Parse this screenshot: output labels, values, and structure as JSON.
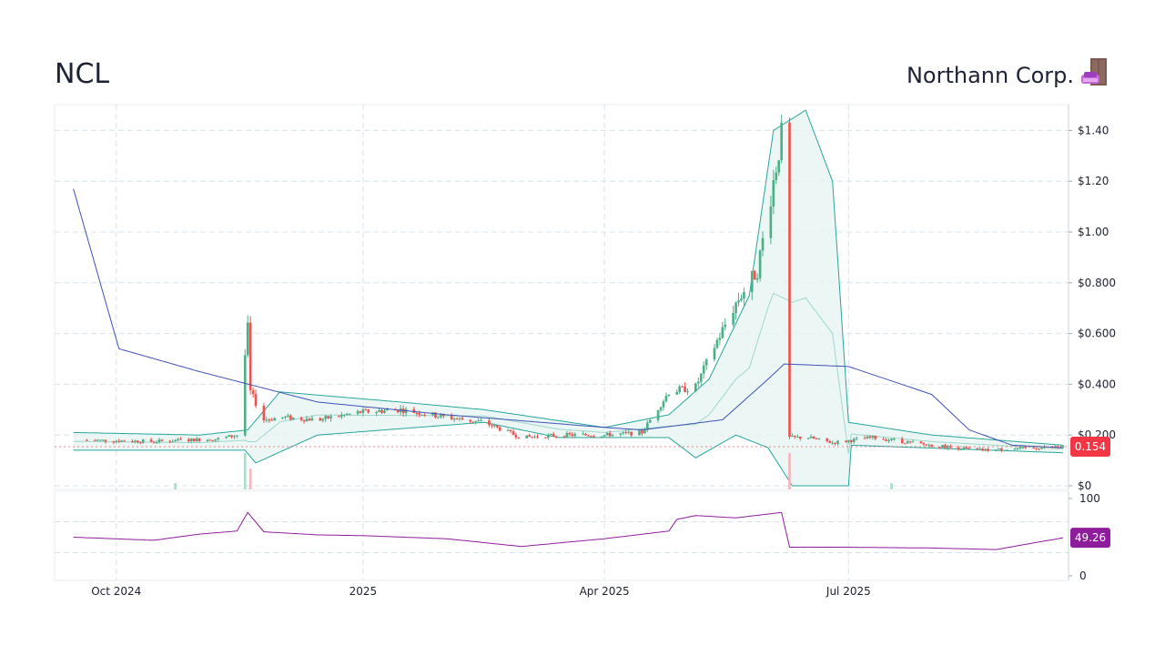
{
  "header": {
    "ticker": "NCL",
    "company": "Northann Corp."
  },
  "logo_icon": "sofa-and-door-icon",
  "colors": {
    "up": "#26a69a",
    "candle_up": "#4caf88",
    "down": "#ef5350",
    "bollinger": "#26a69a",
    "bollinger_fill": "#e6f4f1",
    "ma_long": "#3f51b5",
    "rsi": "#8e1d9c",
    "grid": "#d7e3ea",
    "price_badge": "#f23645",
    "rsi_badge": "#8e1d9c"
  },
  "chart_data": [
    {
      "type": "candlestick",
      "title": "NCL",
      "x_ticks": [
        "Oct 2024",
        "2025",
        "Apr 2025",
        "Jul 2025"
      ],
      "y_ticks": [
        "$0",
        "$0.200",
        "$0.400",
        "$0.600",
        "$0.800",
        "$1.00",
        "$1.20",
        "$1.40"
      ],
      "ylim": [
        0,
        1.5
      ],
      "grid": true,
      "scale": "linear",
      "last_price": "0.154",
      "series": [
        {
          "kind": "close",
          "points": [
            [
              "2024-09-20",
              0.18
            ],
            [
              "2024-10-15",
              0.175
            ],
            [
              "2024-11-08",
              0.185
            ],
            [
              "2024-11-15",
              0.2
            ],
            [
              "2024-11-19",
              0.62
            ],
            [
              "2024-11-20",
              0.37
            ],
            [
              "2024-11-25",
              0.26
            ],
            [
              "2024-12-02",
              0.27
            ],
            [
              "2024-12-15",
              0.26
            ],
            [
              "2024-12-31",
              0.29
            ],
            [
              "2025-01-15",
              0.3
            ],
            [
              "2025-02-01",
              0.27
            ],
            [
              "2025-02-15",
              0.25
            ],
            [
              "2025-03-01",
              0.19
            ],
            [
              "2025-03-15",
              0.2
            ],
            [
              "2025-04-01",
              0.2
            ],
            [
              "2025-04-15",
              0.21
            ],
            [
              "2025-04-25",
              0.37
            ],
            [
              "2025-05-05",
              0.39
            ],
            [
              "2025-05-12",
              0.55
            ],
            [
              "2025-05-20",
              0.72
            ],
            [
              "2025-05-28",
              0.85
            ],
            [
              "2025-06-03",
              1.2
            ],
            [
              "2025-06-06",
              1.38
            ],
            [
              "2025-06-09",
              0.19
            ],
            [
              "2025-06-16",
              0.19
            ],
            [
              "2025-06-25",
              0.17
            ],
            [
              "2025-07-10",
              0.19
            ],
            [
              "2025-07-31",
              0.16
            ],
            [
              "2025-08-20",
              0.14
            ],
            [
              "2025-09-19",
              0.154
            ]
          ]
        },
        {
          "kind": "long-moving-average",
          "points": [
            [
              "2024-09-15",
              1.17
            ],
            [
              "2024-10-02",
              0.54
            ],
            [
              "2024-11-01",
              0.45
            ],
            [
              "2024-12-15",
              0.33
            ],
            [
              "2025-02-01",
              0.28
            ],
            [
              "2025-04-01",
              0.23
            ],
            [
              "2025-04-15",
              0.22
            ],
            [
              "2025-05-15",
              0.26
            ],
            [
              "2025-06-01",
              0.42
            ],
            [
              "2025-06-07",
              0.48
            ],
            [
              "2025-07-01",
              0.47
            ],
            [
              "2025-08-01",
              0.36
            ],
            [
              "2025-08-15",
              0.22
            ],
            [
              "2025-08-31",
              0.16
            ],
            [
              "2025-09-19",
              0.15
            ]
          ]
        },
        {
          "kind": "bollinger-upper",
          "points": [
            [
              "2024-09-15",
              0.21
            ],
            [
              "2024-11-01",
              0.2
            ],
            [
              "2024-11-19",
              0.22
            ],
            [
              "2024-12-01",
              0.37
            ],
            [
              "2025-01-15",
              0.33
            ],
            [
              "2025-02-15",
              0.3
            ],
            [
              "2025-04-01",
              0.23
            ],
            [
              "2025-04-25",
              0.28
            ],
            [
              "2025-05-10",
              0.42
            ],
            [
              "2025-05-25",
              0.75
            ],
            [
              "2025-06-03",
              1.4
            ],
            [
              "2025-06-15",
              1.48
            ],
            [
              "2025-06-25",
              1.2
            ],
            [
              "2025-07-01",
              0.25
            ],
            [
              "2025-08-01",
              0.2
            ],
            [
              "2025-09-19",
              0.16
            ]
          ]
        },
        {
          "kind": "bollinger-lower",
          "points": [
            [
              "2024-09-15",
              0.14
            ],
            [
              "2024-11-18",
              0.14
            ],
            [
              "2024-11-22",
              0.09
            ],
            [
              "2024-12-15",
              0.2
            ],
            [
              "2025-02-15",
              0.25
            ],
            [
              "2025-03-15",
              0.19
            ],
            [
              "2025-04-25",
              0.19
            ],
            [
              "2025-05-05",
              0.11
            ],
            [
              "2025-05-20",
              0.2
            ],
            [
              "2025-06-01",
              0.15
            ],
            [
              "2025-06-10",
              0.0
            ],
            [
              "2025-07-01",
              0.0
            ],
            [
              "2025-07-02",
              0.16
            ],
            [
              "2025-09-19",
              0.13
            ]
          ]
        }
      ]
    },
    {
      "type": "line",
      "title": "RSI",
      "y_ticks": [
        "0",
        "100"
      ],
      "ylim": [
        0,
        100
      ],
      "last_value": "49.26",
      "values": [
        [
          "2024-09-15",
          50
        ],
        [
          "2024-10-15",
          46
        ],
        [
          "2024-11-01",
          54
        ],
        [
          "2024-11-15",
          58
        ],
        [
          "2024-11-19",
          82
        ],
        [
          "2024-11-25",
          57
        ],
        [
          "2024-12-15",
          53
        ],
        [
          "2025-01-01",
          52
        ],
        [
          "2025-02-01",
          48
        ],
        [
          "2025-03-01",
          38
        ],
        [
          "2025-04-01",
          48
        ],
        [
          "2025-04-25",
          58
        ],
        [
          "2025-04-28",
          73
        ],
        [
          "2025-05-05",
          78
        ],
        [
          "2025-05-20",
          75
        ],
        [
          "2025-06-06",
          82
        ],
        [
          "2025-06-09",
          37
        ],
        [
          "2025-07-01",
          37
        ],
        [
          "2025-08-01",
          36
        ],
        [
          "2025-08-25",
          34
        ],
        [
          "2025-09-19",
          49.26
        ]
      ]
    }
  ]
}
